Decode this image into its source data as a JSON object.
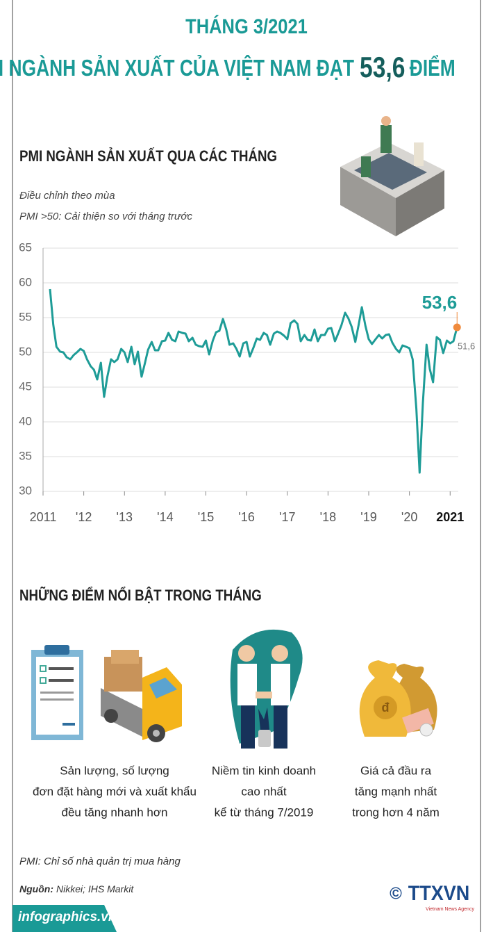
{
  "header": {
    "month": "THÁNG 3/2021",
    "headline": "PMI NGÀNH SẢN XUẤT CỦA VIỆT NAM ĐẠT",
    "headline_value": "53,6",
    "headline_unit": "ĐIỂM"
  },
  "chart_data": {
    "type": "line",
    "title": "PMI NGÀNH SẢN XUẤT QUA CÁC THÁNG",
    "subtitle": [
      "Điều chỉnh theo mùa",
      "PMI >50: Cải thiện so với tháng trước"
    ],
    "color": "#1e9c97",
    "highlight_color": "#f08a3c",
    "grid": true,
    "xlim": [
      2011,
      2021.2
    ],
    "ylim": [
      30,
      65
    ],
    "xticks": [
      2011,
      {
        "value": 2012,
        "label": "'12"
      },
      {
        "value": 2013,
        "label": "'13"
      },
      {
        "value": 2014,
        "label": "'14"
      },
      {
        "value": 2015,
        "label": "'15"
      },
      {
        "value": 2016,
        "label": "'16"
      },
      {
        "value": 2017,
        "label": "'17"
      },
      {
        "value": 2018,
        "label": "'18"
      },
      {
        "value": 2019,
        "label": "'19"
      },
      {
        "value": 2020,
        "label": "'20"
      },
      2021
    ],
    "yticks": [
      30,
      35,
      40,
      45,
      50,
      55,
      60,
      65
    ],
    "x": [
      2011.17,
      2011.25,
      2011.33,
      2011.42,
      2011.5,
      2011.58,
      2011.67,
      2011.75,
      2011.83,
      2011.92,
      2012,
      2012.08,
      2012.17,
      2012.25,
      2012.33,
      2012.42,
      2012.5,
      2012.58,
      2012.67,
      2012.75,
      2012.83,
      2012.92,
      2013,
      2013.08,
      2013.17,
      2013.25,
      2013.33,
      2013.42,
      2013.5,
      2013.58,
      2013.67,
      2013.75,
      2013.83,
      2013.92,
      2014,
      2014.08,
      2014.17,
      2014.25,
      2014.33,
      2014.42,
      2014.5,
      2014.58,
      2014.67,
      2014.75,
      2014.83,
      2014.92,
      2015,
      2015.08,
      2015.17,
      2015.25,
      2015.33,
      2015.42,
      2015.5,
      2015.58,
      2015.67,
      2015.75,
      2015.83,
      2015.92,
      2016,
      2016.08,
      2016.17,
      2016.25,
      2016.33,
      2016.42,
      2016.5,
      2016.58,
      2016.67,
      2016.75,
      2016.83,
      2016.92,
      2017,
      2017.08,
      2017.17,
      2017.25,
      2017.33,
      2017.42,
      2017.5,
      2017.58,
      2017.67,
      2017.75,
      2017.83,
      2017.92,
      2018,
      2018.08,
      2018.17,
      2018.25,
      2018.33,
      2018.42,
      2018.5,
      2018.58,
      2018.67,
      2018.75,
      2018.83,
      2018.92,
      2019,
      2019.08,
      2019.17,
      2019.25,
      2019.33,
      2019.42,
      2019.5,
      2019.58,
      2019.67,
      2019.75,
      2019.83,
      2019.92,
      2020,
      2020.08,
      2020.17,
      2020.25,
      2020.33,
      2020.42,
      2020.5,
      2020.58,
      2020.67,
      2020.75,
      2020.83,
      2020.92,
      2021,
      2021.08,
      2021.17
    ],
    "values": [
      59.1,
      54.0,
      50.8,
      50.1,
      50.0,
      49.3,
      49.0,
      49.6,
      50.0,
      50.5,
      50.2,
      49.0,
      48.0,
      47.5,
      46.1,
      48.5,
      43.6,
      46.5,
      49.0,
      48.6,
      49.0,
      50.5,
      50.0,
      48.6,
      50.8,
      48.3,
      50.1,
      46.5,
      48.4,
      50.4,
      51.5,
      50.3,
      50.3,
      51.6,
      51.7,
      52.8,
      51.8,
      51.6,
      53.0,
      52.8,
      52.7,
      51.6,
      52.1,
      51.1,
      50.9,
      50.8,
      51.7,
      49.7,
      51.7,
      52.9,
      53.1,
      54.8,
      53.3,
      51.1,
      51.3,
      50.5,
      49.4,
      51.3,
      51.5,
      49.4,
      50.7,
      52.0,
      51.8,
      52.8,
      52.5,
      51.1,
      52.7,
      53.0,
      52.8,
      52.4,
      51.9,
      54.2,
      54.6,
      54.1,
      51.6,
      52.5,
      51.8,
      51.7,
      53.3,
      51.6,
      52.5,
      52.5,
      53.4,
      53.5,
      51.6,
      52.7,
      53.9,
      55.7,
      54.9,
      53.7,
      51.5,
      53.9,
      56.5,
      53.8,
      51.9,
      51.2,
      51.9,
      52.5,
      52.0,
      52.5,
      52.6,
      51.4,
      50.5,
      50.0,
      51.0,
      50.8,
      50.6,
      49.0,
      41.9,
      32.7,
      42.7,
      51.1,
      47.6,
      45.7,
      52.2,
      51.8,
      49.9,
      51.7,
      51.3,
      51.6,
      53.6
    ],
    "value_labels": [
      null,
      null,
      null,
      null,
      null,
      null,
      null,
      null,
      null,
      null,
      null,
      null,
      null,
      null,
      null,
      null,
      null,
      null,
      null,
      null,
      null,
      null,
      null,
      null,
      null,
      null,
      null,
      null,
      null,
      null,
      null,
      null,
      null,
      null,
      null,
      null,
      null,
      null,
      null,
      null,
      null,
      null,
      null,
      null,
      null,
      null,
      null,
      null,
      null,
      null,
      null,
      null,
      null,
      null,
      null,
      null,
      null,
      null,
      null,
      null,
      null,
      null,
      null,
      null,
      null,
      null,
      null,
      null,
      null,
      null,
      null,
      null,
      null,
      null,
      null,
      null,
      null,
      null,
      null,
      null,
      null,
      null,
      null,
      null,
      null,
      null,
      null,
      null,
      null,
      null,
      null,
      null,
      null,
      null,
      null,
      null,
      null,
      null,
      null,
      null,
      null,
      null,
      null,
      null,
      null,
      null,
      null,
      null,
      null,
      null,
      null,
      null,
      null,
      null,
      null,
      null,
      null,
      null,
      null,
      "51,6",
      "53,6"
    ]
  },
  "highlights": {
    "title": "NHỮNG ĐIỂM NỔI BẬT TRONG THÁNG",
    "items": [
      {
        "lines": [
          "Sản lượng, số lượng",
          "đơn đặt hàng mới và xuất khẩu",
          "đều tăng nhanh hơn"
        ]
      },
      {
        "lines": [
          "Niềm tin kinh doanh",
          "cao nhất",
          "kể từ tháng 7/2019"
        ]
      },
      {
        "lines": [
          "Giá cả đầu ra",
          "tăng mạnh nhất",
          "trong hơn 4 năm"
        ]
      }
    ]
  },
  "footer": {
    "note": "PMI: Chỉ số nhà quản trị mua hàng",
    "source_label": "Nguồn:",
    "source": "Nikkei; IHS Markit",
    "site": "infographics.vn",
    "copyright": "©",
    "agency": "TTXVN",
    "agency_en": "Vietnam News Agency"
  }
}
